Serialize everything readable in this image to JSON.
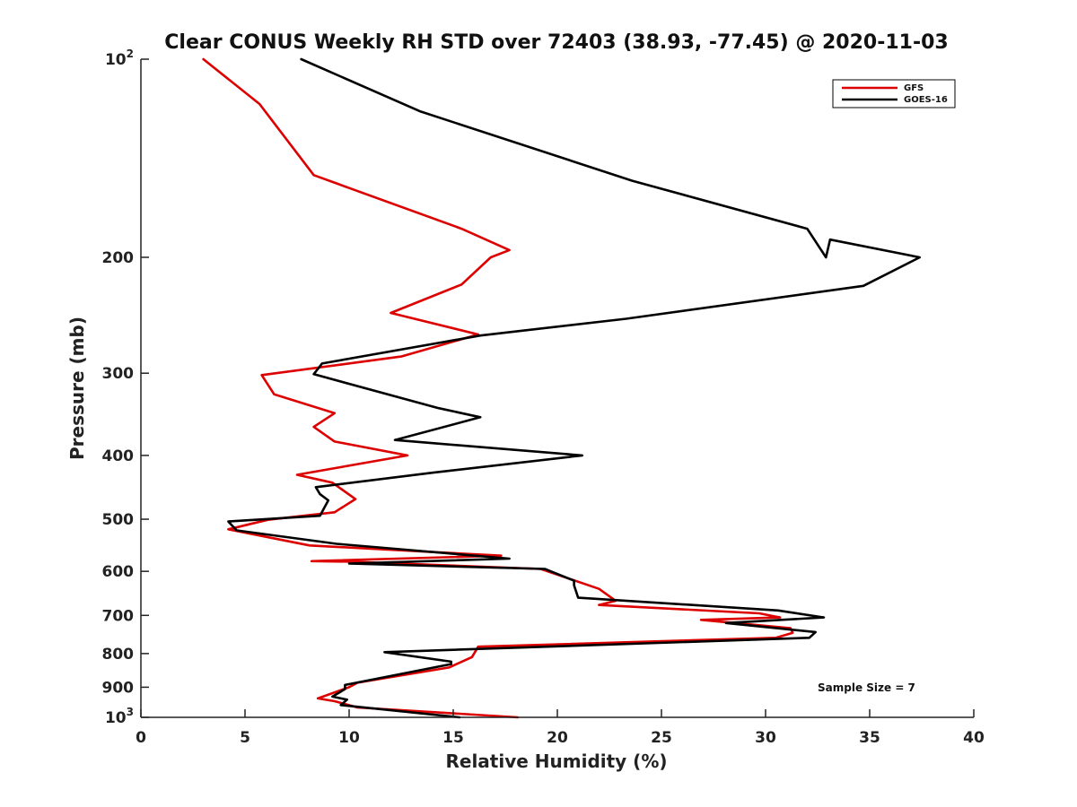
{
  "chart_data": {
    "type": "line",
    "title": "Clear CONUS Weekly RH STD over 72403 (38.93, -77.45) @ 2020-11-03",
    "xlabel": "Relative Humidity (%)",
    "ylabel": "Pressure (mb)",
    "xlim": [
      0,
      40
    ],
    "ylim": [
      100,
      1000
    ],
    "y_scale": "log",
    "y_reversed": true,
    "x_ticks": [
      "0",
      "5",
      "10",
      "15",
      "20",
      "25",
      "30",
      "35",
      "40"
    ],
    "x_tick_values": [
      0,
      5,
      10,
      15,
      20,
      25,
      30,
      35,
      40
    ],
    "y_tick_values": [
      100,
      200,
      300,
      400,
      500,
      600,
      700,
      800,
      900,
      1000
    ],
    "y_tick_labels": [
      {
        "base": "10",
        "exp": "2"
      },
      {
        "base": "200",
        "exp": ""
      },
      {
        "base": "300",
        "exp": ""
      },
      {
        "base": "400",
        "exp": ""
      },
      {
        "base": "500",
        "exp": ""
      },
      {
        "base": "600",
        "exp": ""
      },
      {
        "base": "700",
        "exp": ""
      },
      {
        "base": "800",
        "exp": ""
      },
      {
        "base": "900",
        "exp": ""
      },
      {
        "base": "10",
        "exp": "3"
      }
    ],
    "legend_position": "top-right",
    "grid": false,
    "annotation": "Sample Size = 7",
    "series": [
      {
        "name": "GFS",
        "color": "#dd0000",
        "points": [
          [
            3.0,
            100
          ],
          [
            5.7,
            117
          ],
          [
            8.3,
            150
          ],
          [
            15.4,
            181
          ],
          [
            17.7,
            195
          ],
          [
            16.8,
            200
          ],
          [
            15.4,
            220
          ],
          [
            12.0,
            243
          ],
          [
            16.2,
            262
          ],
          [
            12.5,
            283
          ],
          [
            5.8,
            302
          ],
          [
            6.4,
            323
          ],
          [
            9.3,
            345
          ],
          [
            8.3,
            362
          ],
          [
            9.3,
            381
          ],
          [
            12.8,
            400
          ],
          [
            7.5,
            428
          ],
          [
            9.2,
            440
          ],
          [
            10.3,
            466
          ],
          [
            9.3,
            488
          ],
          [
            6.1,
            501
          ],
          [
            4.2,
            518
          ],
          [
            8.1,
            548
          ],
          [
            17.3,
            568
          ],
          [
            8.2,
            579
          ],
          [
            10.1,
            580
          ],
          [
            19.2,
            595
          ],
          [
            22.0,
            638
          ],
          [
            22.8,
            665
          ],
          [
            22.0,
            675
          ],
          [
            29.7,
            695
          ],
          [
            30.7,
            705
          ],
          [
            26.9,
            711
          ],
          [
            31.2,
            732
          ],
          [
            31.3,
            744
          ],
          [
            30.5,
            757
          ],
          [
            16.2,
            781
          ],
          [
            15.9,
            810
          ],
          [
            14.8,
            840
          ],
          [
            10.4,
            886
          ],
          [
            10.0,
            900
          ],
          [
            8.5,
            936
          ],
          [
            9.3,
            945
          ],
          [
            10.4,
            966
          ],
          [
            18.1,
            1000
          ]
        ]
      },
      {
        "name": "GOES-16",
        "color": "#000000",
        "points": [
          [
            7.7,
            100
          ],
          [
            13.4,
            120
          ],
          [
            23.6,
            153
          ],
          [
            32.0,
            181
          ],
          [
            32.9,
            200
          ],
          [
            33.1,
            188
          ],
          [
            37.4,
            200
          ],
          [
            34.7,
            221
          ],
          [
            23.3,
            248
          ],
          [
            16.3,
            263
          ],
          [
            8.7,
            290
          ],
          [
            8.3,
            301
          ],
          [
            14.3,
            339
          ],
          [
            16.3,
            350
          ],
          [
            12.2,
            379
          ],
          [
            21.2,
            400
          ],
          [
            14.0,
            425
          ],
          [
            8.4,
            447
          ],
          [
            8.6,
            458
          ],
          [
            9.0,
            468
          ],
          [
            8.6,
            494
          ],
          [
            4.2,
            504
          ],
          [
            4.6,
            520
          ],
          [
            9.4,
            545
          ],
          [
            17.7,
            574
          ],
          [
            10.0,
            584
          ],
          [
            19.4,
            595
          ],
          [
            20.8,
            620
          ],
          [
            20.8,
            630
          ],
          [
            21.0,
            658
          ],
          [
            30.6,
            688
          ],
          [
            32.8,
            705
          ],
          [
            28.1,
            719
          ],
          [
            32.4,
            742
          ],
          [
            32.1,
            757
          ],
          [
            11.7,
            796
          ],
          [
            14.9,
            823
          ],
          [
            14.9,
            830
          ],
          [
            9.8,
            893
          ],
          [
            9.8,
            906
          ],
          [
            9.2,
            930
          ],
          [
            9.9,
            940
          ],
          [
            9.6,
            958
          ],
          [
            15.3,
            1000
          ]
        ]
      }
    ]
  }
}
